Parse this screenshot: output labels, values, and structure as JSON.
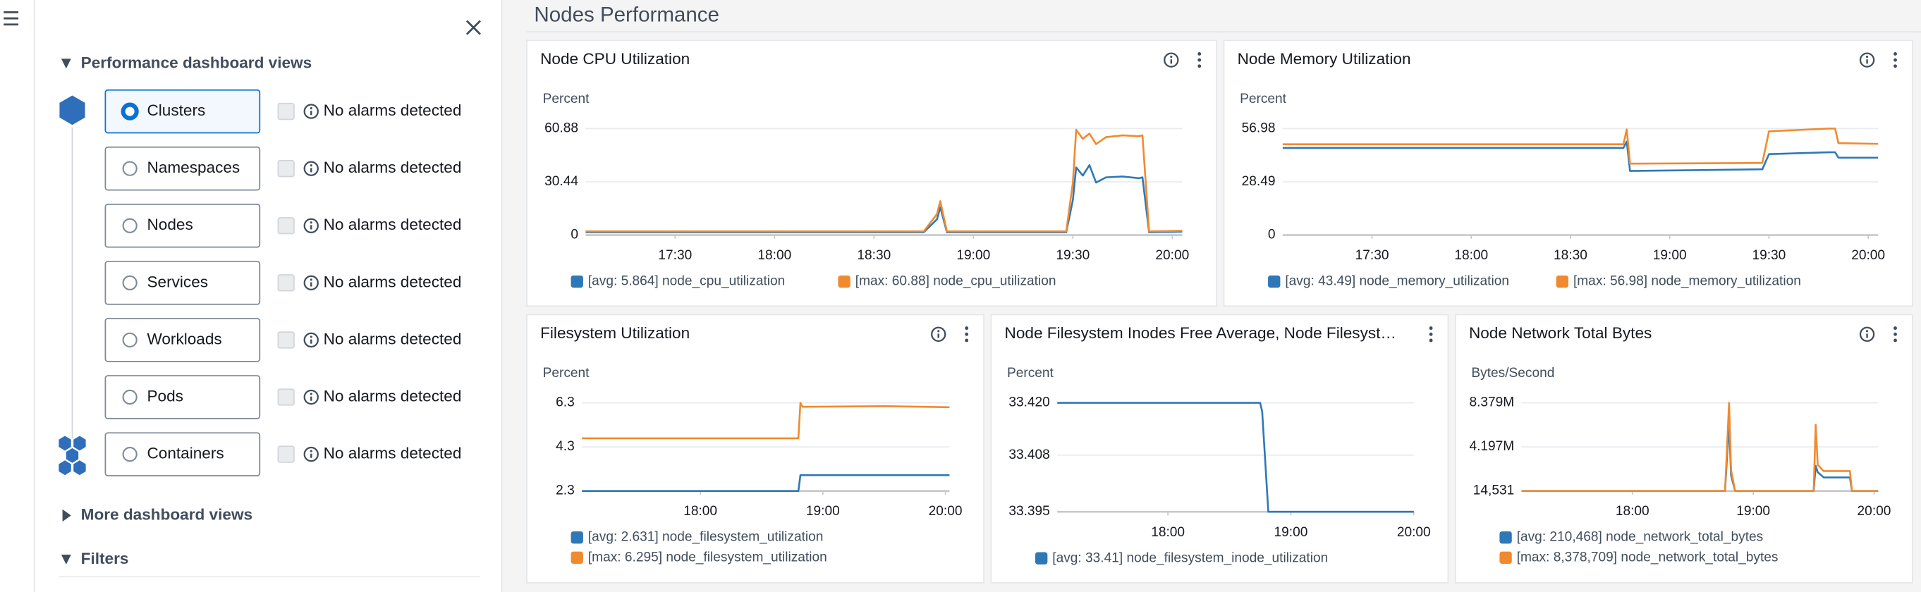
{
  "header": {
    "title": "Nodes Performance"
  },
  "sidebar": {
    "section_title": "Performance dashboard views",
    "views": [
      {
        "label": "Clusters",
        "selected": true,
        "alarm": "No alarms detected"
      },
      {
        "label": "Namespaces",
        "selected": false,
        "alarm": "No alarms detected"
      },
      {
        "label": "Nodes",
        "selected": false,
        "alarm": "No alarms detected"
      },
      {
        "label": "Services",
        "selected": false,
        "alarm": "No alarms detected"
      },
      {
        "label": "Workloads",
        "selected": false,
        "alarm": "No alarms detected"
      },
      {
        "label": "Pods",
        "selected": false,
        "alarm": "No alarms detected"
      },
      {
        "label": "Containers",
        "selected": false,
        "alarm": "No alarms detected"
      }
    ],
    "more_views": "More dashboard views",
    "filters": "Filters"
  },
  "chart_data": [
    {
      "type": "line",
      "title": "Node CPU Utilization",
      "info_icon": true,
      "y_label": "Percent",
      "grid": true,
      "x": [
        "17:03",
        "18:45",
        "18:49",
        "18:50",
        "18:52",
        "19:28",
        "19:30",
        "19:31",
        "19:33",
        "19:35",
        "19:37",
        "19:40",
        "19:45",
        "19:50",
        "19:51",
        "19:53",
        "20:03"
      ],
      "xlim": [
        "17:03",
        "20:03"
      ],
      "xticks": [
        "17:30",
        "18:00",
        "18:30",
        "19:00",
        "19:30",
        "20:00"
      ],
      "ylim": [
        0,
        60.88
      ],
      "yticks": [
        0,
        30.44,
        60.88
      ],
      "series": [
        {
          "name": "[avg: 5.864] node_cpu_utilization",
          "color": "#2e78b7",
          "values": [
            1.6,
            1.6,
            9,
            15.9,
            1.6,
            1.6,
            20,
            38.7,
            34,
            40,
            30,
            33,
            33.5,
            32.5,
            33,
            1.6,
            2
          ]
        },
        {
          "name": "[max: 60.88] node_cpu_utilization",
          "color": "#f08a2e",
          "values": [
            2.1,
            2.1,
            12,
            19.4,
            2.1,
            2.1,
            30,
            60.2,
            55,
            58,
            52,
            56,
            57,
            56.5,
            57,
            2.1,
            2.5
          ]
        }
      ]
    },
    {
      "type": "line",
      "title": "Node Memory Utilization",
      "info_icon": true,
      "y_label": "Percent",
      "grid": true,
      "x": [
        "17:03",
        "18:46",
        "18:47",
        "18:48",
        "19:28",
        "19:30",
        "19:48",
        "19:50",
        "19:51",
        "20:03"
      ],
      "xlim": [
        "17:03",
        "20:03"
      ],
      "xticks": [
        "17:30",
        "18:00",
        "18:30",
        "19:00",
        "19:30",
        "20:00"
      ],
      "ylim": [
        0,
        56.98
      ],
      "yticks": [
        0,
        28.49,
        56.98
      ],
      "series": [
        {
          "name": "[avg: 43.49] node_memory_utilization",
          "color": "#2e78b7",
          "values": [
            46.6,
            46.6,
            50,
            34.3,
            35.2,
            43.3,
            44.3,
            44.3,
            41.4,
            41.4
          ]
        },
        {
          "name": "[max: 56.98] node_memory_utilization",
          "color": "#f08a2e",
          "values": [
            48.6,
            48.6,
            56.5,
            38.2,
            38.6,
            55.5,
            56.98,
            56.98,
            49.2,
            48.8
          ]
        }
      ]
    },
    {
      "type": "line",
      "title": "Filesystem Utilization",
      "info_icon": true,
      "y_label": "Percent",
      "grid": true,
      "x": [
        "17:02",
        "18:48",
        "18:49",
        "18:50",
        "19:30",
        "20:02"
      ],
      "xlim": [
        "17:02",
        "20:02"
      ],
      "xticks": [
        "18:00",
        "19:00",
        "20:00"
      ],
      "ylim": [
        2.3,
        6.3
      ],
      "yticks": [
        2.3,
        4.3,
        6.3
      ],
      "series": [
        {
          "name": "[avg: 2.631] node_filesystem_utilization",
          "color": "#2e78b7",
          "values": [
            2.3,
            2.3,
            3.02,
            3.02,
            3.02,
            3.02
          ]
        },
        {
          "name": "[max: 6.295] node_filesystem_utilization",
          "color": "#f08a2e",
          "values": [
            4.69,
            4.69,
            6.3,
            6.12,
            6.15,
            6.1
          ]
        }
      ]
    },
    {
      "type": "line",
      "title": "Node Filesystem Inodes Free Average, Node Filesyst…",
      "info_icon": false,
      "y_label": "Percent",
      "grid": true,
      "x": [
        "17:06",
        "18:45",
        "18:46",
        "18:49",
        "20:00"
      ],
      "xlim": [
        "17:06",
        "20:00"
      ],
      "xticks": [
        "18:00",
        "19:00",
        "20:00"
      ],
      "ylim": [
        33.395,
        33.42
      ],
      "yticks": [
        33.395,
        33.408,
        {
          "value": 33.42,
          "label": "33.420"
        }
      ],
      "series": [
        {
          "name": "[avg: 33.41] node_filesystem_inode_utilization",
          "color": "#2e78b7",
          "values": [
            33.42,
            33.42,
            33.418,
            33.395,
            33.395
          ]
        }
      ]
    },
    {
      "type": "line",
      "title": "Node Network Total Bytes",
      "info_icon": true,
      "y_label": "Bytes/Second",
      "grid": true,
      "x": [
        "17:05",
        "18:46",
        "18:48",
        "18:49",
        "18:51",
        "19:30",
        "19:31",
        "19:32",
        "19:35",
        "19:48",
        "19:49",
        "20:02"
      ],
      "xlim": [
        "17:05",
        "20:02"
      ],
      "xticks": [
        "18:00",
        "19:00",
        "20:00"
      ],
      "ylim": [
        14531,
        8379000
      ],
      "yticks": [
        {
          "value": 14531,
          "label": "14,531"
        },
        {
          "value": 4197000,
          "label": "4.197M"
        },
        {
          "value": 8379000,
          "label": "8.379M"
        }
      ],
      "series": [
        {
          "name": "[avg: 210,468] node_network_total_bytes",
          "color": "#2e78b7",
          "values": [
            14531,
            14531,
            6500000,
            1500000,
            14531,
            14531,
            2400000,
            1800000,
            1300000,
            1300000,
            14531,
            14531
          ]
        },
        {
          "name": "[max: 8,378,709] node_network_total_bytes",
          "color": "#f08a2e",
          "values": [
            14531,
            14531,
            8379000,
            2000000,
            14531,
            14531,
            6300000,
            2500000,
            1900000,
            1900000,
            14531,
            14531
          ]
        }
      ]
    }
  ]
}
